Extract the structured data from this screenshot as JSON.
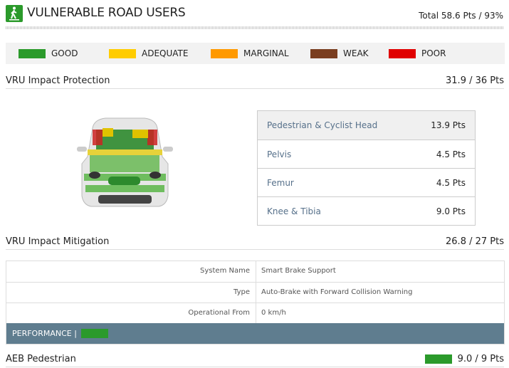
{
  "header": {
    "title": "VULNERABLE ROAD USERS",
    "total": "Total 58.6 Pts / 93%",
    "icon": "pedestrian-icon"
  },
  "legend": [
    {
      "label": "GOOD",
      "color": "#2b9a2b"
    },
    {
      "label": "ADEQUATE",
      "color": "#ffcc00"
    },
    {
      "label": "MARGINAL",
      "color": "#ff9900"
    },
    {
      "label": "WEAK",
      "color": "#7a3e20"
    },
    {
      "label": "POOR",
      "color": "#e00000"
    }
  ],
  "protection": {
    "title": "VRU Impact Protection",
    "score": "31.9 / 36 Pts",
    "rows": [
      {
        "label": "Pedestrian & Cyclist Head",
        "value": "13.9 Pts"
      },
      {
        "label": "Pelvis",
        "value": "4.5 Pts"
      },
      {
        "label": "Femur",
        "value": "4.5 Pts"
      },
      {
        "label": "Knee & Tibia",
        "value": "9.0 Pts"
      }
    ]
  },
  "mitigation": {
    "title": "VRU Impact Mitigation",
    "score": "26.8 / 27 Pts",
    "rows": [
      {
        "label": "System Name",
        "value": "Smart Brake Support"
      },
      {
        "label": "Type",
        "value": "Auto-Brake with Forward Collision Warning"
      },
      {
        "label": "Operational From",
        "value": "0 km/h"
      }
    ],
    "performance_label": "PERFORMANCE |",
    "performance_color": "#2b9a2b"
  },
  "aeb": {
    "title": "AEB Pedestrian",
    "score": "9.0 / 9 Pts",
    "rating_color": "#2b9a2b"
  }
}
